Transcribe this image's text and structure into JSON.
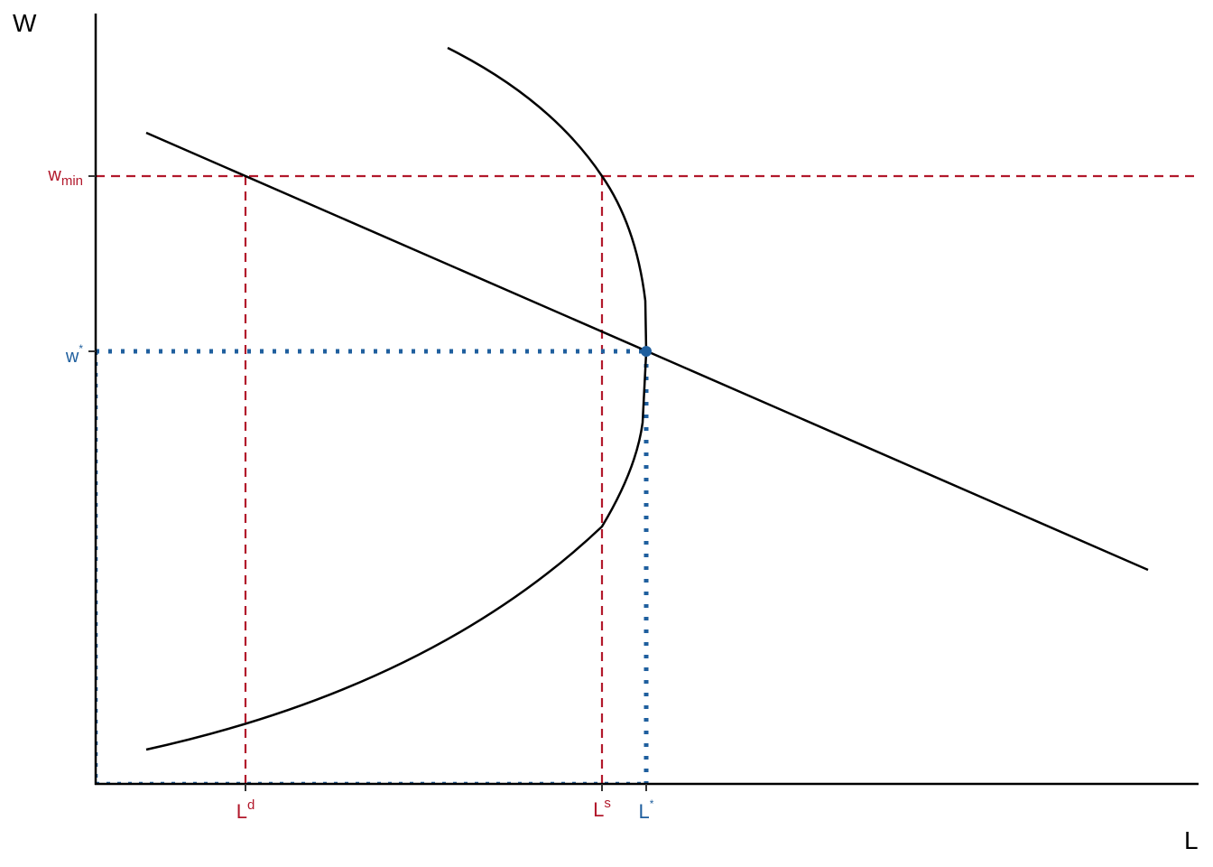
{
  "axes": {
    "y_label": "W",
    "x_label": "L"
  },
  "ticks": {
    "w_min": {
      "base": "w",
      "sub": "min"
    },
    "w_star": {
      "base": "w",
      "sup": "*"
    },
    "L_d": {
      "base": "L",
      "sup": "d"
    },
    "L_s": {
      "base": "L",
      "sup": "s"
    },
    "L_star": {
      "base": "L",
      "sup": "*"
    }
  }
}
